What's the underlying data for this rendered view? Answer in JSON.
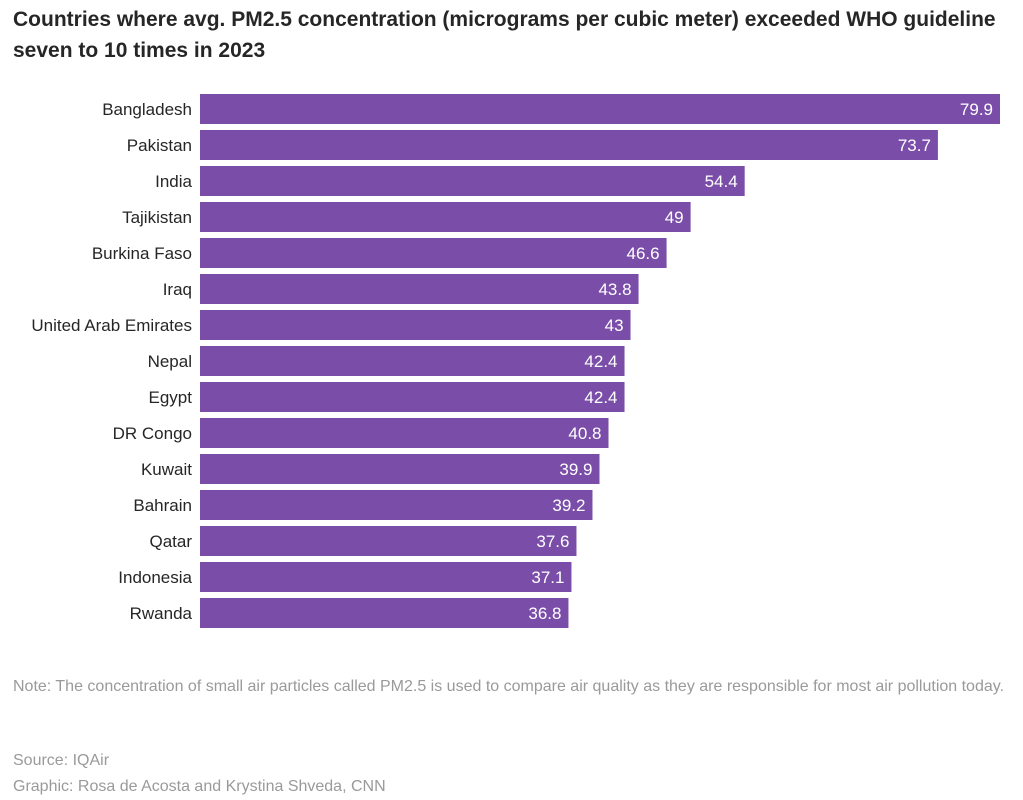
{
  "chart_data": {
    "type": "bar",
    "orientation": "horizontal",
    "title": "Countries where avg. PM2.5 concentration (micrograms per cubic meter) exceeded WHO guideline seven to 10 times in 2023",
    "categories": [
      "Bangladesh",
      "Pakistan",
      "India",
      "Tajikistan",
      "Burkina Faso",
      "Iraq",
      "United Arab Emirates",
      "Nepal",
      "Egypt",
      "DR Congo",
      "Kuwait",
      "Bahrain",
      "Qatar",
      "Indonesia",
      "Rwanda"
    ],
    "values": [
      79.9,
      73.7,
      54.4,
      49,
      46.6,
      43.8,
      43,
      42.4,
      42.4,
      40.8,
      39.9,
      39.2,
      37.6,
      37.1,
      36.8
    ],
    "value_labels": [
      "79.9",
      "73.7",
      "54.4",
      "49",
      "46.6",
      "43.8",
      "43",
      "42.4",
      "42.4",
      "40.8",
      "39.9",
      "39.2",
      "37.6",
      "37.1",
      "36.8"
    ],
    "xlabel": "",
    "ylabel": "",
    "xlim": [
      0,
      79.9
    ],
    "bar_color": "#7a4ea8",
    "grid": false,
    "legend": "none"
  },
  "note": "Note: The concentration of small air particles called PM2.5 is used to compare air quality as they are responsible for most air pollution today.",
  "source": "Source: IQAir",
  "credit": "Graphic: Rosa de Acosta and Krystina Shveda, CNN"
}
